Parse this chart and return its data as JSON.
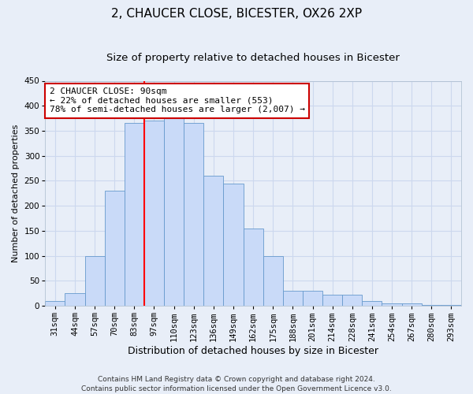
{
  "title1": "2, CHAUCER CLOSE, BICESTER, OX26 2XP",
  "title2": "Size of property relative to detached houses in Bicester",
  "xlabel": "Distribution of detached houses by size in Bicester",
  "ylabel": "Number of detached properties",
  "categories": [
    "31sqm",
    "44sqm",
    "57sqm",
    "70sqm",
    "83sqm",
    "97sqm",
    "110sqm",
    "123sqm",
    "136sqm",
    "149sqm",
    "162sqm",
    "175sqm",
    "188sqm",
    "201sqm",
    "214sqm",
    "228sqm",
    "241sqm",
    "254sqm",
    "267sqm",
    "280sqm",
    "293sqm"
  ],
  "values": [
    10,
    25,
    100,
    230,
    365,
    370,
    375,
    365,
    260,
    245,
    155,
    100,
    30,
    30,
    22,
    22,
    10,
    5,
    5,
    2,
    2
  ],
  "bar_color": "#c9daf8",
  "bar_edge_color": "#6699cc",
  "annotation_text": "2 CHAUCER CLOSE: 90sqm\n← 22% of detached houses are smaller (553)\n78% of semi-detached houses are larger (2,007) →",
  "annotation_box_facecolor": "#ffffff",
  "annotation_box_edgecolor": "#cc0000",
  "grid_color": "#ccd8ee",
  "background_color": "#e8eef8",
  "ylim": [
    0,
    450
  ],
  "yticks": [
    0,
    50,
    100,
    150,
    200,
    250,
    300,
    350,
    400,
    450
  ],
  "red_line_index": 4.5,
  "footer1": "Contains HM Land Registry data © Crown copyright and database right 2024.",
  "footer2": "Contains public sector information licensed under the Open Government Licence v3.0.",
  "title1_fontsize": 11,
  "title2_fontsize": 9.5,
  "xlabel_fontsize": 9,
  "ylabel_fontsize": 8,
  "tick_fontsize": 7.5,
  "annotation_fontsize": 8,
  "footer_fontsize": 6.5
}
